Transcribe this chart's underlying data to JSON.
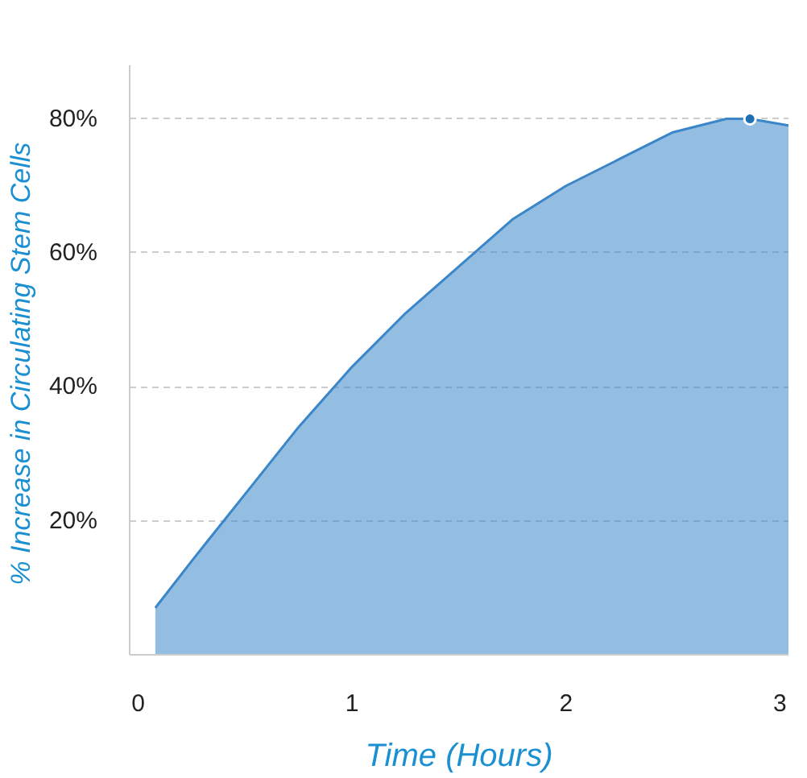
{
  "chart_data": {
    "type": "area",
    "xlabel": "Time (Hours)",
    "ylabel": "% Increase in Circulating  Stem Cells",
    "x": [
      0.08,
      0.25,
      0.5,
      0.75,
      1,
      1.25,
      1.5,
      1.75,
      2,
      2.25,
      2.5,
      2.75,
      2.86,
      3.04
    ],
    "series": [
      {
        "color": "#3a86c8",
        "values": [
          7,
          14,
          24,
          34,
          43,
          51,
          58,
          65,
          70,
          74,
          78,
          80,
          80,
          79
        ]
      },
      {
        "type": "scatter",
        "color": "#1f6fb5",
        "x": [
          2.86
        ],
        "values": [
          80
        ]
      }
    ],
    "xlim": [
      -0.04,
      3.04
    ],
    "ylim": [
      0,
      88
    ],
    "xticks": [
      0,
      1,
      2,
      3
    ],
    "yticks": [
      {
        "value": 20,
        "label": "20%"
      },
      {
        "value": 40,
        "label": "40%"
      },
      {
        "value": 60,
        "label": "60%"
      },
      {
        "value": 80,
        "label": "80%"
      }
    ],
    "grid": "y"
  }
}
